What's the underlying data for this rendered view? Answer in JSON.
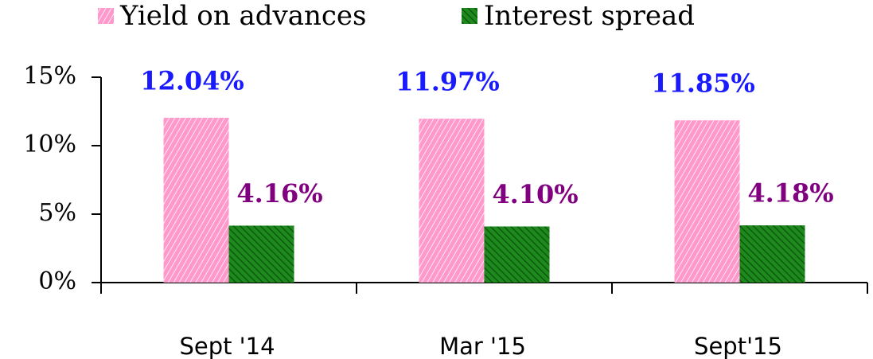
{
  "chart_data": {
    "type": "bar",
    "categories": [
      "Sept '14",
      "Mar '15",
      "Sept'15"
    ],
    "series": [
      {
        "name": "Yield on advances",
        "color": "#ff99cc",
        "label_color": "#1a1aff",
        "values": [
          12.04,
          11.97,
          11.85
        ],
        "value_labels": [
          "12.04%",
          "11.97%",
          "11.85%"
        ]
      },
      {
        "name": "Interest spread",
        "color": "#1e8a1e",
        "label_color": "#800080",
        "values": [
          4.16,
          4.1,
          4.18
        ],
        "value_labels": [
          "4.16%",
          "4.10%",
          "4.18%"
        ]
      }
    ],
    "ylim": [
      0,
      15
    ],
    "yticks": [
      {
        "value": 0,
        "label": "0%"
      },
      {
        "value": 5,
        "label": "5%"
      },
      {
        "value": 10,
        "label": "10%"
      },
      {
        "value": 15,
        "label": "15%"
      }
    ],
    "legend": "top"
  }
}
